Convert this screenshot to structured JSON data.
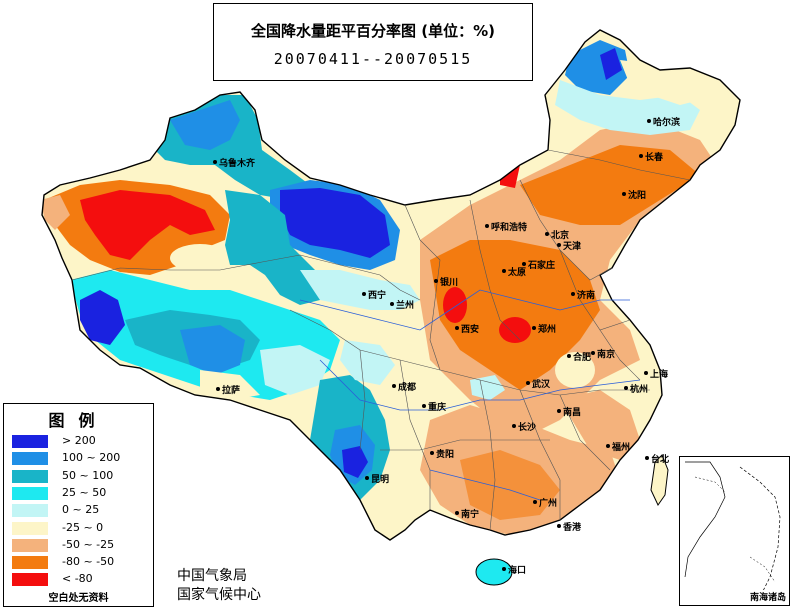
{
  "title": {
    "main": "全国降水量距平百分率图 (单位：%)",
    "period": "20070411--20070515"
  },
  "legend": {
    "title": "图例",
    "items": [
      {
        "label": "> 200",
        "color": "#1a22e0"
      },
      {
        "label": "100 ~ 200",
        "color": "#1f8fe6"
      },
      {
        "label": "50 ~ 100",
        "color": "#19b4c8"
      },
      {
        "label": "25 ~ 50",
        "color": "#1ee9f0"
      },
      {
        "label": "0 ~ 25",
        "color": "#c2f5f5"
      },
      {
        "label": "-25 ~ 0",
        "color": "#fdf5c8"
      },
      {
        "label": "-50 ~ -25",
        "color": "#f4b27c"
      },
      {
        "label": "-80 ~ -50",
        "color": "#f37b10"
      },
      {
        "label": "< -80",
        "color": "#f40e0e"
      }
    ],
    "no_data": "空白处无资料"
  },
  "agency": {
    "line1": "中国气象局",
    "line2": "国家气候中心"
  },
  "inset": {
    "label": "南海诸岛"
  },
  "cities": [
    {
      "name": "乌鲁木齐"
    },
    {
      "name": "哈尔滨"
    },
    {
      "name": "长春"
    },
    {
      "name": "沈阳"
    },
    {
      "name": "呼和浩特"
    },
    {
      "name": "北京"
    },
    {
      "name": "天津"
    },
    {
      "name": "石家庄"
    },
    {
      "name": "太原"
    },
    {
      "name": "银川"
    },
    {
      "name": "济南"
    },
    {
      "name": "西宁"
    },
    {
      "name": "兰州"
    },
    {
      "name": "西安"
    },
    {
      "name": "郑州"
    },
    {
      "name": "合肥"
    },
    {
      "name": "南京"
    },
    {
      "name": "上海"
    },
    {
      "name": "拉萨"
    },
    {
      "name": "成都"
    },
    {
      "name": "武汉"
    },
    {
      "name": "杭州"
    },
    {
      "name": "重庆"
    },
    {
      "name": "南昌"
    },
    {
      "name": "长沙"
    },
    {
      "name": "贵阳"
    },
    {
      "name": "福州"
    },
    {
      "name": "台北"
    },
    {
      "name": "昆明"
    },
    {
      "name": "广州"
    },
    {
      "name": "南宁"
    },
    {
      "name": "香港"
    },
    {
      "name": "海口"
    }
  ]
}
